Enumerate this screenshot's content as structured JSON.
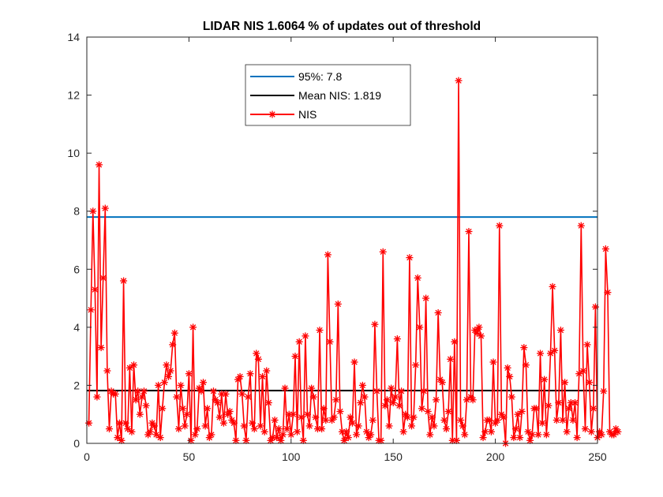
{
  "chart_data": {
    "type": "line",
    "title": "LIDAR NIS 1.6064 % of updates out of threshold",
    "xlabel": "",
    "ylabel": "",
    "xlim": [
      0,
      250
    ],
    "ylim": [
      0,
      14
    ],
    "x_ticks": [
      "0",
      "50",
      "100",
      "150",
      "200",
      "250"
    ],
    "y_ticks": [
      "0",
      "2",
      "4",
      "6",
      "8",
      "10",
      "12",
      "14"
    ],
    "grid": false,
    "legend_position": "top-center",
    "series": [
      {
        "name": "95%: 7.8",
        "kind": "constant",
        "value": 7.8,
        "color": "#0072BD"
      },
      {
        "name": "Mean NIS: 1.819",
        "kind": "constant",
        "value": 1.819,
        "color": "#000000"
      },
      {
        "name": "NIS",
        "kind": "line-marker",
        "marker": "asterisk",
        "color": "#FF0000",
        "x_start": 1,
        "values": [
          0.7,
          4.6,
          8.0,
          5.3,
          1.6,
          9.6,
          3.3,
          5.7,
          8.1,
          2.5,
          0.5,
          1.8,
          1.7,
          1.7,
          0.2,
          0.7,
          0.1,
          5.6,
          0.7,
          0.5,
          2.6,
          0.4,
          2.7,
          1.5,
          1.8,
          1.0,
          1.6,
          1.8,
          1.3,
          0.3,
          0.4,
          0.7,
          0.6,
          0.3,
          2.0,
          0.2,
          1.2,
          2.1,
          2.7,
          2.3,
          2.5,
          3.4,
          3.8,
          1.6,
          0.5,
          2.0,
          1.2,
          0.6,
          1.0,
          2.4,
          0.1,
          4.0,
          0.3,
          0.5,
          1.9,
          1.8,
          2.1,
          0.6,
          1.2,
          0.2,
          0.3,
          1.8,
          1.5,
          1.4,
          0.9,
          1.7,
          0.7,
          1.7,
          1.0,
          1.1,
          0.8,
          0.7,
          0.1,
          2.2,
          2.3,
          1.7,
          0.6,
          0.1,
          1.6,
          2.4,
          0.7,
          0.5,
          3.1,
          2.9,
          0.6,
          2.3,
          0.4,
          2.5,
          1.4,
          0.1,
          0.2,
          0.8,
          0.2,
          0.5,
          0.1,
          0.3,
          1.9,
          0.5,
          1.0,
          0.3,
          1.0,
          3.0,
          0.4,
          3.5,
          0.9,
          0.1,
          3.7,
          1.0,
          0.6,
          1.9,
          1.6,
          0.9,
          0.5,
          3.9,
          0.5,
          1.2,
          0.8,
          6.5,
          3.5,
          0.8,
          0.9,
          1.5,
          4.8,
          1.1,
          0.4,
          0.1,
          0.4,
          0.2,
          0.9,
          0.7,
          2.8,
          0.3,
          0.6,
          1.4,
          2.0,
          1.6,
          0.4,
          0.2,
          0.3,
          0.8,
          4.1,
          1.8,
          0.1,
          0.1,
          6.6,
          1.3,
          1.5,
          0.6,
          1.9,
          1.4,
          1.6,
          3.6,
          1.3,
          1.8,
          0.4,
          1.0,
          0.9,
          6.4,
          0.6,
          0.9,
          2.7,
          5.7,
          4.0,
          1.2,
          1.8,
          5.0,
          1.1,
          0.3,
          0.9,
          0.6,
          1.5,
          4.5,
          2.2,
          2.1,
          0.8,
          0.5,
          1.1,
          2.9,
          0.1,
          3.5,
          0.1,
          12.5,
          0.8,
          0.6,
          0.3,
          1.5,
          7.3,
          1.6,
          1.5,
          3.9,
          3.8,
          4.0,
          3.7,
          0.2,
          0.4,
          0.8,
          0.8,
          0.4,
          2.8,
          0.7,
          0.8,
          7.5,
          1.0,
          0.9,
          0.0,
          2.6,
          2.3,
          1.6,
          0.2,
          0.5,
          1.0,
          0.2,
          1.1,
          3.3,
          2.7,
          0.4,
          0.1,
          0.3,
          1.2,
          1.2,
          0.3,
          3.1,
          0.7,
          2.2,
          0.3,
          1.3,
          3.1,
          5.4,
          3.2,
          0.8,
          1.4,
          3.9,
          0.8,
          2.1,
          0.4,
          1.2,
          1.4,
          0.8,
          1.4,
          0.2,
          2.4,
          7.5,
          2.5,
          0.5,
          3.4,
          2.1,
          0.4,
          1.2,
          4.7,
          0.2,
          0.4,
          0.3,
          1.8,
          6.7,
          5.2,
          0.4,
          0.3,
          0.3,
          0.5,
          0.4
        ]
      }
    ]
  }
}
